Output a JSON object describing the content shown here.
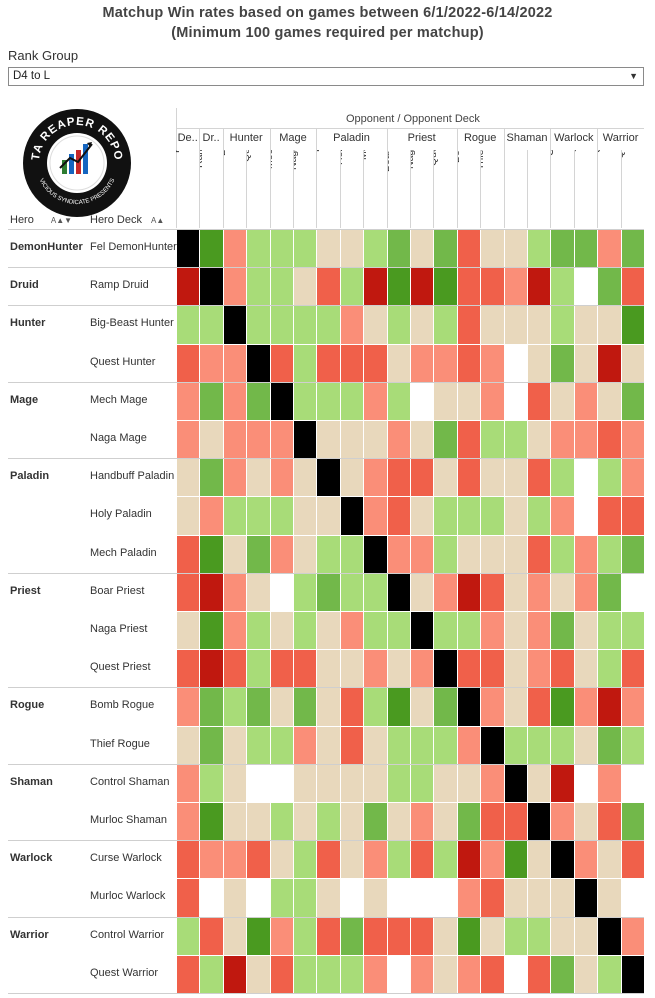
{
  "title_line1": "Matchup Win rates based on games between 6/1/2022-6/14/2022",
  "title_line2": "(Minimum 100 games required per matchup)",
  "filter": {
    "label": "Rank Group",
    "value": "D4 to L"
  },
  "logo": {
    "top_text": "DATA REAPER REPORT",
    "bottom_text": "VICIOUS SYNDICATE PRESENTS"
  },
  "colors": {
    "strong_loss": "#c0180f",
    "loss": "#f0604a",
    "slight_loss": "#fa8e78",
    "even": "#e8d8bc",
    "slight_win": "#a8dc78",
    "win": "#72b84a",
    "strong_win": "#4a9a20",
    "mirror": "#000000",
    "no_data": "#ffffff"
  },
  "chart_data": {
    "type": "heatmap",
    "title": "Matchup Win rates based on games between 6/1/2022-6/14/2022",
    "subtitle": "(Minimum 100 games required per matchup)",
    "column_header": "Opponent / Opponent Deck",
    "row_headers": [
      "Hero",
      "Hero Deck"
    ],
    "column_groups": [
      "De..",
      "Dr..",
      "Hunter",
      "Mage",
      "Paladin",
      "Priest",
      "Rogue",
      "Shaman",
      "Warlock",
      "Warrior"
    ],
    "column_group_spans": [
      1,
      1,
      2,
      2,
      3,
      3,
      2,
      2,
      2,
      2
    ],
    "columns": [
      "Fel DemonHu..",
      "Ramp Druid",
      "Big-Beast Hu..",
      "Quest Hunter",
      "Mech Mage",
      "Naga Mage",
      "Handbuff Pala..",
      "Holy Paladin",
      "Mech Paladin",
      "Boar Priest",
      "Naga Priest",
      "Quest Priest",
      "Bomb Rogue",
      "ThiefRogue",
      "Control Shaman",
      "Murloc Shaman",
      "Curse Warlock",
      "Murloc Warlock",
      "Control Warrior",
      "Quest Warrior"
    ],
    "row_groups": [
      {
        "hero": "DemonHunter",
        "decks": [
          "Fel DemonHunter"
        ]
      },
      {
        "hero": "Druid",
        "decks": [
          "Ramp Druid"
        ]
      },
      {
        "hero": "Hunter",
        "decks": [
          "Big-Beast Hunter",
          "Quest Hunter"
        ]
      },
      {
        "hero": "Mage",
        "decks": [
          "Mech Mage",
          "Naga Mage"
        ]
      },
      {
        "hero": "Paladin",
        "decks": [
          "Handbuff Paladin",
          "Holy Paladin",
          "Mech Paladin"
        ]
      },
      {
        "hero": "Priest",
        "decks": [
          "Boar Priest",
          "Naga Priest",
          "Quest Priest"
        ]
      },
      {
        "hero": "Rogue",
        "decks": [
          "Bomb Rogue",
          "Thief Rogue"
        ]
      },
      {
        "hero": "Shaman",
        "decks": [
          "Control Shaman",
          "Murloc Shaman"
        ]
      },
      {
        "hero": "Warlock",
        "decks": [
          "Curse Warlock",
          "Murloc Warlock"
        ]
      },
      {
        "hero": "Warrior",
        "decks": [
          "Control Warrior",
          "Quest Warrior"
        ]
      }
    ],
    "value_scale": "-3 strong loss … 0 even … +3 strong win; M = mirror; N = no data",
    "values": [
      [
        "M",
        3,
        -1,
        1,
        1,
        1,
        0,
        0,
        1,
        2,
        0,
        2,
        -2,
        0,
        0,
        1,
        2,
        2,
        -1,
        2
      ],
      [
        -3,
        "M",
        -1,
        1,
        1,
        0,
        -2,
        1,
        -3,
        3,
        -3,
        3,
        -2,
        -2,
        -1,
        -3,
        1,
        "N",
        2,
        -2
      ],
      [
        1,
        1,
        "M",
        1,
        1,
        1,
        1,
        -1,
        0,
        1,
        0,
        1,
        -2,
        0,
        0,
        0,
        1,
        0,
        0,
        3
      ],
      [
        -2,
        -1,
        -1,
        "M",
        -2,
        1,
        -2,
        -2,
        -2,
        0,
        -1,
        -1,
        -2,
        -1,
        "N",
        0,
        2,
        0,
        -3,
        0
      ],
      [
        -1,
        2,
        -1,
        2,
        "M",
        1,
        1,
        1,
        -1,
        1,
        "N",
        0,
        0,
        -1,
        "N",
        -2,
        0,
        -1,
        0,
        2
      ],
      [
        -1,
        0,
        -1,
        -1,
        -1,
        "M",
        0,
        0,
        0,
        -1,
        0,
        2,
        -2,
        1,
        1,
        0,
        -1,
        -1,
        -2,
        -1
      ],
      [
        0,
        2,
        -1,
        0,
        -1,
        0,
        "M",
        0,
        -1,
        -2,
        -2,
        0,
        -2,
        0,
        0,
        -2,
        1,
        "N",
        1,
        -1
      ],
      [
        0,
        -1,
        1,
        1,
        1,
        0,
        0,
        "M",
        -1,
        -2,
        0,
        1,
        1,
        1,
        0,
        1,
        -1,
        "N",
        -2,
        -2
      ],
      [
        -2,
        3,
        0,
        2,
        -1,
        0,
        1,
        1,
        "M",
        -1,
        -1,
        1,
        0,
        0,
        0,
        -2,
        1,
        -1,
        1,
        2
      ],
      [
        -2,
        -3,
        -1,
        0,
        "N",
        1,
        2,
        1,
        1,
        "M",
        0,
        -1,
        -3,
        -2,
        0,
        -1,
        0,
        -1,
        2,
        "N"
      ],
      [
        0,
        3,
        -1,
        1,
        0,
        1,
        0,
        -1,
        1,
        1,
        "M",
        1,
        1,
        -1,
        0,
        -1,
        2,
        0,
        1,
        1
      ],
      [
        -2,
        -3,
        -2,
        1,
        -2,
        -2,
        0,
        0,
        -1,
        0,
        -1,
        "M",
        -2,
        -2,
        0,
        -1,
        -2,
        0,
        1,
        -2
      ],
      [
        -1,
        2,
        1,
        2,
        0,
        2,
        0,
        -2,
        1,
        3,
        0,
        2,
        "M",
        -1,
        0,
        -2,
        3,
        -1,
        -3,
        -1
      ],
      [
        0,
        2,
        0,
        1,
        1,
        -1,
        0,
        -2,
        0,
        1,
        1,
        1,
        -1,
        "M",
        1,
        1,
        1,
        0,
        2,
        1
      ],
      [
        -1,
        1,
        0,
        "N",
        "N",
        0,
        0,
        0,
        0,
        1,
        1,
        0,
        0,
        -1,
        "M",
        0,
        -3,
        "N",
        -1,
        "N"
      ],
      [
        -1,
        3,
        0,
        0,
        1,
        0,
        1,
        0,
        2,
        0,
        -1,
        0,
        2,
        -2,
        -2,
        "M",
        -1,
        0,
        -2,
        2
      ],
      [
        -2,
        -1,
        -1,
        -2,
        0,
        1,
        -2,
        0,
        -1,
        1,
        -2,
        1,
        -3,
        -1,
        3,
        0,
        "M",
        -1,
        0,
        -2
      ],
      [
        -2,
        "N",
        0,
        "N",
        1,
        1,
        0,
        "N",
        0,
        "N",
        "N",
        "N",
        -1,
        -2,
        0,
        0,
        0,
        "M",
        0,
        "N"
      ],
      [
        1,
        -2,
        0,
        3,
        -1,
        1,
        -2,
        2,
        -2,
        -2,
        -2,
        0,
        3,
        0,
        1,
        1,
        0,
        0,
        "M",
        -1
      ],
      [
        -2,
        1,
        -3,
        0,
        -2,
        1,
        1,
        1,
        -1,
        "N",
        -1,
        0,
        -1,
        -2,
        "N",
        -2,
        2,
        0,
        1,
        "M"
      ]
    ]
  }
}
